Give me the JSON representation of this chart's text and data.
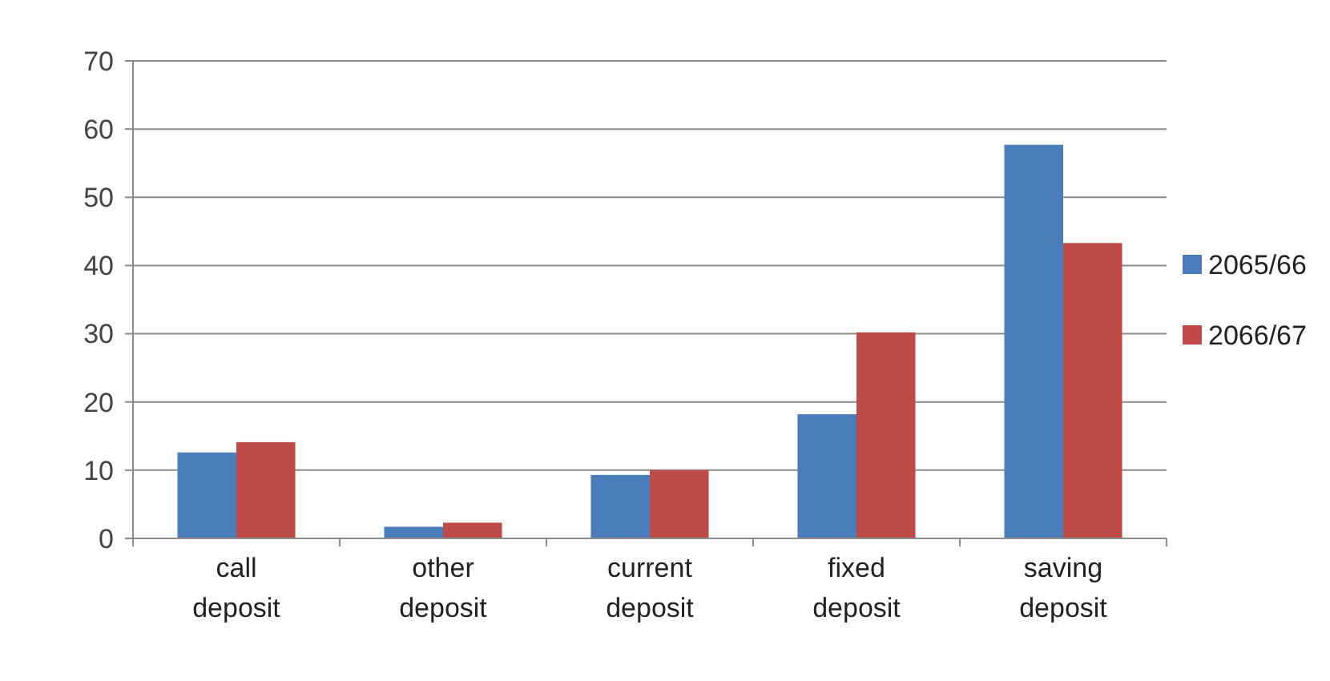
{
  "chart_data": {
    "type": "bar",
    "categories": [
      "call deposit",
      "other deposit",
      "current deposit",
      "fixed deposit",
      "saving deposit"
    ],
    "series": [
      {
        "name": "2065/66",
        "color": "#4a7ebb",
        "values": [
          12.6,
          1.7,
          9.3,
          18.2,
          57.7
        ]
      },
      {
        "name": "2066/67",
        "color": "#be4b48",
        "values": [
          14.1,
          2.3,
          10.0,
          30.2,
          43.3
        ]
      }
    ],
    "ylim": [
      0,
      70
    ],
    "yticks": [
      0,
      10,
      20,
      30,
      40,
      50,
      60,
      70
    ],
    "grid": "y",
    "legend": "right"
  }
}
